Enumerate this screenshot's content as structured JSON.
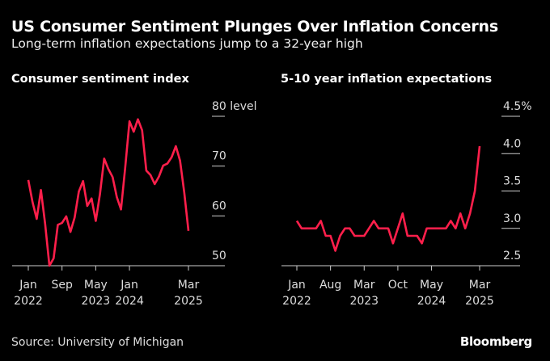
{
  "header": {
    "title": "US Consumer Sentiment Plunges Over Inflation Concerns",
    "subtitle": "Long-term inflation expectations jump to a 32-year high"
  },
  "footer": {
    "source": "Source: University of Michigan",
    "brand": "Bloomberg"
  },
  "colors": {
    "line": "#ff1f4b",
    "background": "#000000",
    "axis": "#cccccc"
  },
  "chart_data": [
    {
      "type": "line",
      "title": "Consumer sentiment index",
      "unit": "level",
      "ylim": [
        50,
        80
      ],
      "yticks": [
        "50",
        "60",
        "70",
        "80"
      ],
      "ytick_values": [
        50,
        60,
        70,
        80
      ],
      "ytick_suffix_top": "level",
      "xticks": [
        {
          "i": 0,
          "l1": "Jan",
          "l2": "2022"
        },
        {
          "i": 8,
          "l1": "Sep",
          "l2": ""
        },
        {
          "i": 16,
          "l1": "May",
          "l2": "2023"
        },
        {
          "i": 24,
          "l1": "Jan",
          "l2": "2024"
        },
        {
          "i": 38,
          "l1": "Mar",
          "l2": "2025"
        }
      ],
      "x_start": "Jan 2022",
      "x_end": "Mar 2025",
      "values": [
        67.2,
        62.8,
        59.4,
        65.2,
        58.4,
        50.0,
        51.5,
        58.2,
        58.6,
        59.9,
        56.8,
        59.7,
        64.9,
        67.0,
        62.0,
        63.5,
        59.0,
        64.4,
        71.5,
        69.4,
        67.8,
        63.8,
        61.3,
        69.7,
        79.0,
        76.9,
        79.4,
        77.2,
        69.1,
        68.2,
        66.4,
        67.9,
        70.1,
        70.5,
        71.8,
        74.0,
        71.1,
        64.7,
        57.0
      ]
    },
    {
      "type": "line",
      "title": "5-10 year inflation expectations",
      "unit": "%",
      "ylim": [
        2.5,
        4.5
      ],
      "yticks": [
        "2.5",
        "3.0",
        "3.5",
        "4.0",
        "4.5%"
      ],
      "ytick_values": [
        2.5,
        3.0,
        3.5,
        4.0,
        4.5
      ],
      "xticks": [
        {
          "i": 0,
          "l1": "Jan",
          "l2": "2022"
        },
        {
          "i": 7,
          "l1": "Aug",
          "l2": ""
        },
        {
          "i": 14,
          "l1": "Mar",
          "l2": "2023"
        },
        {
          "i": 21,
          "l1": "Oct",
          "l2": ""
        },
        {
          "i": 28,
          "l1": "May",
          "l2": "2024"
        },
        {
          "i": 38,
          "l1": "Mar",
          "l2": "2025"
        }
      ],
      "x_start": "Jan 2022",
      "x_end": "Mar 2025",
      "values": [
        3.1,
        3.0,
        3.0,
        3.0,
        3.0,
        3.1,
        2.9,
        2.9,
        2.7,
        2.9,
        3.0,
        3.0,
        2.9,
        2.9,
        2.9,
        3.0,
        3.1,
        3.0,
        3.0,
        3.0,
        2.8,
        3.0,
        3.2,
        2.9,
        2.9,
        2.9,
        2.8,
        3.0,
        3.0,
        3.0,
        3.0,
        3.0,
        3.1,
        3.0,
        3.2,
        3.0,
        3.2,
        3.5,
        4.1
      ]
    }
  ]
}
